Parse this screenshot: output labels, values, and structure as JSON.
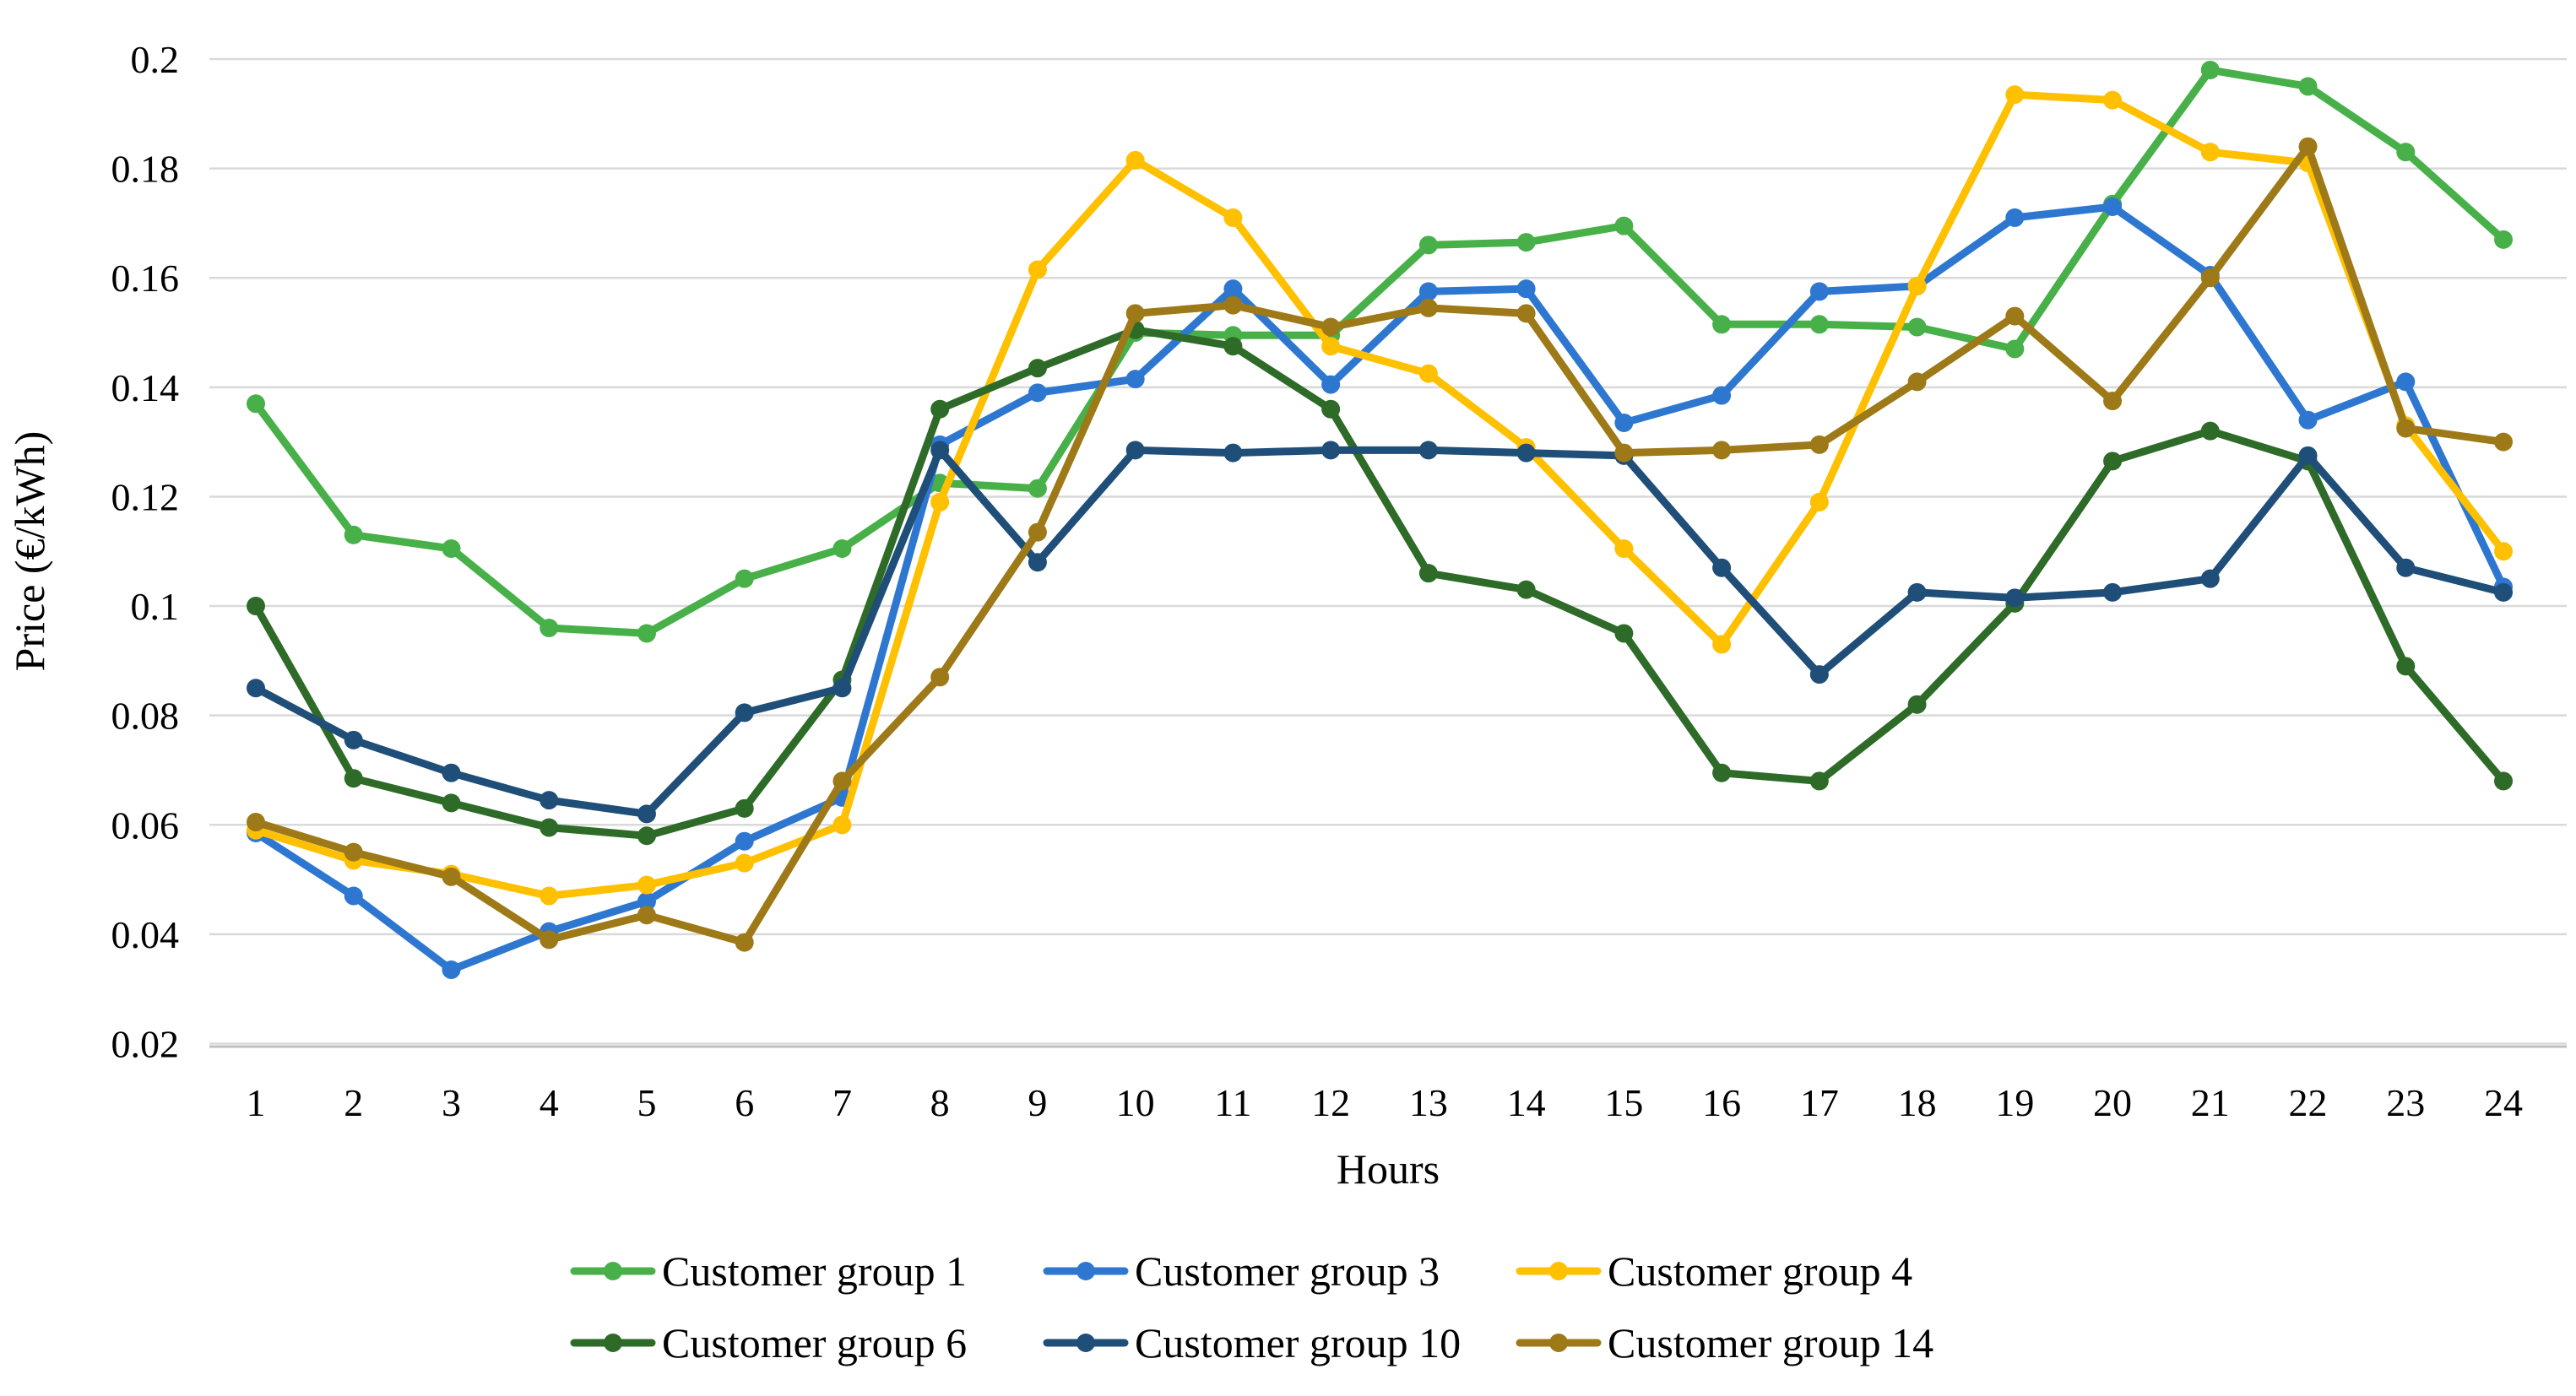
{
  "chart_data": {
    "type": "line",
    "title": "",
    "xlabel": "Hours",
    "ylabel": "Price (€/kWh)",
    "x": [
      1,
      2,
      3,
      4,
      5,
      6,
      7,
      8,
      9,
      10,
      11,
      12,
      13,
      14,
      15,
      16,
      17,
      18,
      19,
      20,
      21,
      22,
      23,
      24
    ],
    "xtick_labels": [
      "1",
      "2",
      "3",
      "4",
      "5",
      "6",
      "7",
      "8",
      "9",
      "10",
      "11",
      "12",
      "13",
      "14",
      "15",
      "16",
      "17",
      "18",
      "19",
      "20",
      "21",
      "22",
      "23",
      "24"
    ],
    "ylim": [
      0.02,
      0.2
    ],
    "ytick_labels": [
      "0.2",
      "0.18",
      "0.16",
      "0.14",
      "0.12",
      "0.1",
      "0.08",
      "0.06",
      "0.04",
      "0.02"
    ],
    "ytick_values": [
      0.2,
      0.18,
      0.16,
      0.14,
      0.12,
      0.1,
      0.08,
      0.06,
      0.04,
      0.02
    ],
    "grid": "horizontal",
    "legend_position": "bottom",
    "marker": "circle",
    "colors": {
      "grid": "#D9D9D9",
      "axis_line": "#BFBFBF",
      "text": "#000000"
    },
    "series": [
      {
        "name": "Customer group 1",
        "color": "#48B048",
        "values": [
          0.137,
          0.113,
          0.1105,
          0.096,
          0.095,
          0.105,
          0.1105,
          0.1225,
          0.1215,
          0.15,
          0.1495,
          0.1495,
          0.166,
          0.1665,
          0.1695,
          0.1515,
          0.1515,
          0.151,
          0.147,
          0.1735,
          0.198,
          0.195,
          0.183,
          0.167
        ]
      },
      {
        "name": "Customer group 3",
        "color": "#2E77D0",
        "values": [
          0.0585,
          0.047,
          0.0335,
          0.0405,
          0.046,
          0.057,
          0.065,
          0.1295,
          0.139,
          0.1415,
          0.158,
          0.1405,
          0.1575,
          0.158,
          0.1335,
          0.1385,
          0.1575,
          0.1585,
          0.171,
          0.173,
          0.1605,
          0.134,
          0.141,
          0.1035
        ]
      },
      {
        "name": "Customer group 4",
        "color": "#FFC000",
        "values": [
          0.059,
          0.0535,
          0.051,
          0.047,
          0.049,
          0.053,
          0.06,
          0.119,
          0.1615,
          0.1815,
          0.171,
          0.1475,
          0.1425,
          0.129,
          0.1105,
          0.093,
          0.119,
          0.1585,
          0.1935,
          0.1925,
          0.183,
          0.181,
          0.133,
          0.11
        ]
      },
      {
        "name": "Customer group 6",
        "color": "#2E6B28",
        "values": [
          0.1,
          0.0685,
          0.064,
          0.0595,
          0.058,
          0.063,
          0.0865,
          0.136,
          0.1435,
          0.1505,
          0.1475,
          0.136,
          0.106,
          0.103,
          0.095,
          0.0695,
          0.068,
          0.082,
          0.1005,
          0.1265,
          0.132,
          0.1265,
          0.089,
          0.068
        ]
      },
      {
        "name": "Customer group 10",
        "color": "#1F4E79",
        "values": [
          0.085,
          0.0755,
          0.0695,
          0.0645,
          0.062,
          0.0805,
          0.085,
          0.1285,
          0.108,
          0.1285,
          0.128,
          0.1285,
          0.1285,
          0.128,
          0.1275,
          0.107,
          0.0875,
          0.1025,
          0.1015,
          0.1025,
          0.105,
          0.1275,
          0.107,
          0.1025
        ]
      },
      {
        "name": "Customer group 14",
        "color": "#9E7918",
        "values": [
          0.0605,
          0.055,
          0.0505,
          0.039,
          0.0435,
          0.0385,
          0.068,
          0.087,
          0.1135,
          0.1535,
          0.155,
          0.151,
          0.1545,
          0.1535,
          0.128,
          0.1285,
          0.1295,
          0.141,
          0.153,
          0.1375,
          0.16,
          0.184,
          0.1325,
          0.13
        ]
      }
    ]
  }
}
